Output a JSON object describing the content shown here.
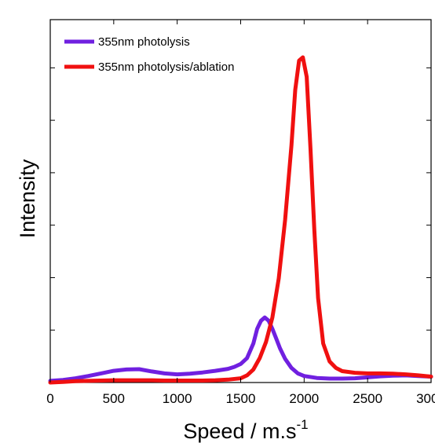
{
  "chart_data": {
    "type": "line",
    "title": "",
    "xlabel": "Speed / m.s",
    "xlabel_superscript": "-1",
    "ylabel": "Intensity",
    "xlim": [
      0,
      3000
    ],
    "ylim": [
      0,
      1.0
    ],
    "xticks": [
      "0",
      "500",
      "1000",
      "1500",
      "2000",
      "2500",
      "3000"
    ],
    "yticks_shown": false,
    "legend_position": "top-left",
    "series": [
      {
        "name": "355nm photolysis",
        "color": "#7020e0",
        "x": [
          0,
          100,
          200,
          300,
          400,
          500,
          600,
          700,
          800,
          900,
          1000,
          1100,
          1200,
          1300,
          1400,
          1450,
          1500,
          1550,
          1600,
          1630,
          1660,
          1690,
          1720,
          1750,
          1780,
          1810,
          1850,
          1900,
          1950,
          2000,
          2100,
          2200,
          2300,
          2400,
          2500,
          2600,
          2700,
          2800,
          2900,
          3000
        ],
        "y": [
          0.005,
          0.008,
          0.013,
          0.02,
          0.028,
          0.036,
          0.04,
          0.041,
          0.034,
          0.028,
          0.025,
          0.027,
          0.031,
          0.036,
          0.042,
          0.048,
          0.057,
          0.075,
          0.12,
          0.165,
          0.19,
          0.2,
          0.19,
          0.165,
          0.135,
          0.105,
          0.073,
          0.045,
          0.028,
          0.02,
          0.014,
          0.012,
          0.012,
          0.013,
          0.016,
          0.019,
          0.021,
          0.022,
          0.02,
          0.018
        ]
      },
      {
        "name": "355nm photolysis/ablation",
        "color": "#f01010",
        "x": [
          0,
          100,
          200,
          300,
          400,
          500,
          600,
          700,
          800,
          900,
          1000,
          1100,
          1200,
          1300,
          1400,
          1500,
          1550,
          1600,
          1650,
          1700,
          1750,
          1800,
          1850,
          1900,
          1930,
          1960,
          1990,
          2020,
          2050,
          2080,
          2110,
          2150,
          2200,
          2250,
          2300,
          2400,
          2500,
          2600,
          2700,
          2800,
          2900,
          3000
        ],
        "y": [
          0,
          0.002,
          0.004,
          0.005,
          0.006,
          0.007,
          0.007,
          0.007,
          0.007,
          0.006,
          0.006,
          0.006,
          0.006,
          0.007,
          0.009,
          0.013,
          0.022,
          0.04,
          0.075,
          0.125,
          0.2,
          0.32,
          0.5,
          0.73,
          0.9,
          0.99,
          1.0,
          0.94,
          0.72,
          0.47,
          0.26,
          0.12,
          0.065,
          0.045,
          0.035,
          0.03,
          0.028,
          0.028,
          0.027,
          0.025,
          0.022,
          0.018
        ]
      }
    ]
  }
}
